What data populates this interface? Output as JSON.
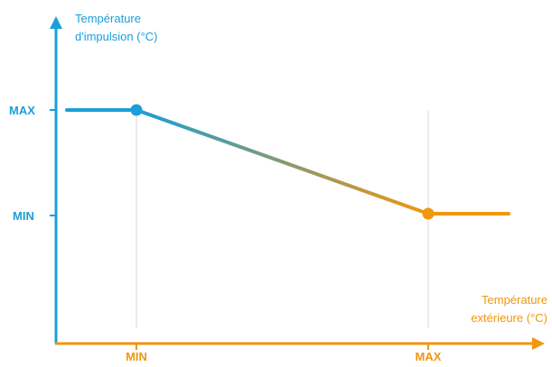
{
  "colors": {
    "y_axis": "#1a9fd8",
    "x_axis": "#f0960f",
    "grid": "#d9d9d9"
  },
  "chart_data": {
    "type": "line",
    "y_axis_title": [
      "Température",
      "d'impulsion (°C)"
    ],
    "x_axis_title": [
      "Température",
      "extérieure (°C)"
    ],
    "y_ticks": [
      "MAX",
      "MIN"
    ],
    "x_ticks": [
      "MIN",
      "MAX"
    ],
    "grid": "vertical lines at x ticks",
    "series": [
      {
        "points": [
          {
            "x": "start",
            "y": "MAX"
          },
          {
            "x": "MIN",
            "y": "MAX"
          },
          {
            "x": "MAX",
            "y": "MIN"
          },
          {
            "x": "end",
            "y": "MIN"
          }
        ],
        "markers": [
          {
            "x": "MIN",
            "y": "MAX"
          },
          {
            "x": "MAX",
            "y": "MIN"
          }
        ],
        "stroke": "gradient from blue to orange along the sloped segment"
      }
    ]
  }
}
